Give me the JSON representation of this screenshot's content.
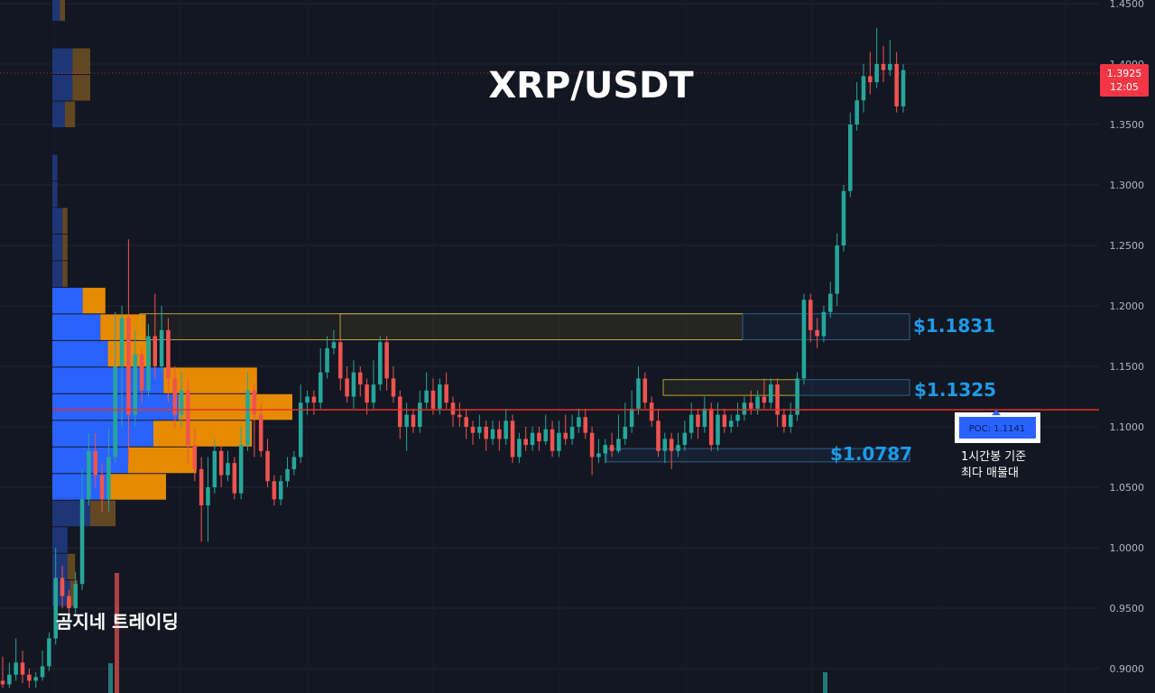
{
  "chart_data": {
    "type": "candlestick",
    "title": "XRP/USDT",
    "ylim": [
      0.885,
      1.455
    ],
    "y_ticks": [
      "1.4500",
      "1.4000",
      "1.3500",
      "1.3000",
      "1.2500",
      "1.2000",
      "1.1500",
      "1.1000",
      "1.0500",
      "1.0000",
      "0.9500",
      "0.9000"
    ],
    "current_price": {
      "value": "1.3925",
      "countdown": "12:05",
      "price": 1.3925,
      "color": "#f23645"
    },
    "poc": {
      "label": "POC: 1.1141",
      "price": 1.1141,
      "note_line1": "1시간봉 기준",
      "note_line2": "최다 매물대"
    },
    "levels": [
      {
        "label": "$1.1831",
        "low": 1.172,
        "high": 1.1935
      },
      {
        "label": "$1.1325",
        "low": 1.126,
        "high": 1.139
      },
      {
        "label": "$1.0787",
        "low": 1.071,
        "high": 1.082
      }
    ],
    "volume_profile": {
      "bin_size": 0.022,
      "bins": [
        {
          "low": 1.435,
          "up": 0.3,
          "down": 0.2
        },
        {
          "low": 1.391,
          "up": 0.8,
          "down": 0.7
        },
        {
          "low": 1.369,
          "up": 0.8,
          "down": 0.7
        },
        {
          "low": 1.347,
          "up": 0.5,
          "down": 0.4
        },
        {
          "low": 1.303,
          "up": 0.2,
          "down": 0.0
        },
        {
          "low": 1.281,
          "up": 0.2,
          "down": 0.0
        },
        {
          "low": 1.259,
          "up": 0.4,
          "down": 0.2
        },
        {
          "low": 1.237,
          "up": 0.4,
          "down": 0.2
        },
        {
          "low": 1.215,
          "up": 0.4,
          "down": 0.2
        },
        {
          "low": 1.193,
          "up": 1.2,
          "down": 0.9
        },
        {
          "low": 1.171,
          "up": 1.9,
          "down": 1.8
        },
        {
          "low": 1.149,
          "up": 2.2,
          "down": 1.7
        },
        {
          "low": 1.127,
          "up": 4.4,
          "down": 3.7
        },
        {
          "low": 1.105,
          "up": 5.0,
          "down": 4.5
        },
        {
          "low": 1.083,
          "up": 4.0,
          "down": 3.9
        },
        {
          "low": 1.061,
          "up": 3.0,
          "down": 2.7
        },
        {
          "low": 1.039,
          "up": 2.2,
          "down": 2.3
        },
        {
          "low": 1.017,
          "up": 1.5,
          "down": 1.0
        },
        {
          "low": 0.995,
          "up": 0.6,
          "down": 0.0
        },
        {
          "low": 0.973,
          "up": 0.6,
          "down": 0.3
        },
        {
          "low": 0.951,
          "up": 0.7,
          "down": 0.3
        }
      ]
    },
    "candles": [
      [
        0.89,
        0.887,
        0.91,
        0.884
      ],
      [
        0.887,
        0.895,
        0.905,
        0.884
      ],
      [
        0.895,
        0.905,
        0.925,
        0.89
      ],
      [
        0.905,
        0.895,
        0.915,
        0.888
      ],
      [
        0.895,
        0.89,
        0.9,
        0.884
      ],
      [
        0.89,
        0.893,
        0.897,
        0.884
      ],
      [
        0.893,
        0.902,
        0.915,
        0.89
      ],
      [
        0.902,
        0.925,
        0.93,
        0.898
      ],
      [
        0.925,
        0.975,
        1.0,
        0.92
      ],
      [
        0.975,
        0.96,
        0.985,
        0.95
      ],
      [
        0.96,
        0.95,
        0.965,
        0.94
      ],
      [
        0.95,
        0.97,
        0.98,
        0.945
      ],
      [
        0.97,
        1.04,
        1.065,
        0.965
      ],
      [
        1.04,
        1.08,
        1.095,
        1.035
      ],
      [
        1.08,
        1.06,
        1.095,
        1.05
      ],
      [
        1.06,
        1.04,
        1.07,
        1.03
      ],
      [
        1.04,
        1.075,
        1.1,
        1.03
      ],
      [
        1.075,
        1.15,
        1.195,
        1.07
      ],
      [
        1.15,
        1.19,
        1.2,
        1.1
      ],
      [
        1.19,
        1.11,
        1.255,
        1.07
      ],
      [
        1.11,
        1.16,
        1.18,
        1.1
      ],
      [
        1.16,
        1.13,
        1.165,
        1.12
      ],
      [
        1.13,
        1.175,
        1.185,
        1.125
      ],
      [
        1.175,
        1.15,
        1.21,
        1.14
      ],
      [
        1.15,
        1.18,
        1.2,
        1.145
      ],
      [
        1.18,
        1.14,
        1.19,
        1.12
      ],
      [
        1.14,
        1.11,
        1.15,
        1.1
      ],
      [
        1.11,
        1.13,
        1.145,
        1.1
      ],
      [
        1.13,
        1.085,
        1.14,
        1.07
      ],
      [
        1.085,
        1.065,
        1.1,
        1.055
      ],
      [
        1.065,
        1.035,
        1.075,
        1.005
      ],
      [
        1.035,
        1.05,
        1.075,
        1.005
      ],
      [
        1.05,
        1.08,
        1.09,
        1.045
      ],
      [
        1.08,
        1.06,
        1.085,
        1.05
      ],
      [
        1.06,
        1.07,
        1.08,
        1.055
      ],
      [
        1.07,
        1.045,
        1.075,
        1.04
      ],
      [
        1.045,
        1.085,
        1.1,
        1.04
      ],
      [
        1.085,
        1.13,
        1.145,
        1.08
      ],
      [
        1.13,
        1.11,
        1.135,
        1.075
      ],
      [
        1.11,
        1.08,
        1.12,
        1.075
      ],
      [
        1.08,
        1.055,
        1.09,
        1.05
      ],
      [
        1.055,
        1.04,
        1.06,
        1.035
      ],
      [
        1.04,
        1.055,
        1.06,
        1.035
      ],
      [
        1.055,
        1.065,
        1.075,
        1.05
      ],
      [
        1.065,
        1.075,
        1.08,
        1.06
      ],
      [
        1.075,
        1.12,
        1.135,
        1.07
      ],
      [
        1.12,
        1.125,
        1.13,
        1.11
      ],
      [
        1.125,
        1.12,
        1.13,
        1.11
      ],
      [
        1.12,
        1.145,
        1.165,
        1.115
      ],
      [
        1.145,
        1.165,
        1.175,
        1.14
      ],
      [
        1.165,
        1.17,
        1.18,
        1.16
      ],
      [
        1.17,
        1.14,
        1.175,
        1.13
      ],
      [
        1.14,
        1.125,
        1.15,
        1.12
      ],
      [
        1.125,
        1.145,
        1.155,
        1.115
      ],
      [
        1.145,
        1.135,
        1.15,
        1.125
      ],
      [
        1.135,
        1.12,
        1.14,
        1.11
      ],
      [
        1.12,
        1.135,
        1.155,
        1.115
      ],
      [
        1.135,
        1.17,
        1.175,
        1.13
      ],
      [
        1.17,
        1.14,
        1.175,
        1.13
      ],
      [
        1.14,
        1.125,
        1.15,
        1.12
      ],
      [
        1.125,
        1.1,
        1.13,
        1.09
      ],
      [
        1.1,
        1.11,
        1.12,
        1.08
      ],
      [
        1.11,
        1.1,
        1.115,
        1.095
      ],
      [
        1.1,
        1.12,
        1.13,
        1.095
      ],
      [
        1.12,
        1.13,
        1.145,
        1.115
      ],
      [
        1.13,
        1.115,
        1.14,
        1.11
      ],
      [
        1.115,
        1.135,
        1.14,
        1.11
      ],
      [
        1.135,
        1.12,
        1.145,
        1.115
      ],
      [
        1.12,
        1.11,
        1.125,
        1.1
      ],
      [
        1.11,
        1.108,
        1.12,
        1.1
      ],
      [
        1.108,
        1.1,
        1.115,
        1.09
      ],
      [
        1.1,
        1.095,
        1.105,
        1.085
      ],
      [
        1.095,
        1.1,
        1.11,
        1.09
      ],
      [
        1.1,
        1.09,
        1.105,
        1.08
      ],
      [
        1.09,
        1.098,
        1.105,
        1.085
      ],
      [
        1.098,
        1.09,
        1.105,
        1.08
      ],
      [
        1.09,
        1.105,
        1.115,
        1.085
      ],
      [
        1.105,
        1.075,
        1.11,
        1.07
      ],
      [
        1.075,
        1.09,
        1.095,
        1.07
      ],
      [
        1.09,
        1.085,
        1.1,
        1.08
      ],
      [
        1.085,
        1.095,
        1.1,
        1.08
      ],
      [
        1.095,
        1.088,
        1.1,
        1.08
      ],
      [
        1.088,
        1.098,
        1.11,
        1.085
      ],
      [
        1.098,
        1.08,
        1.105,
        1.075
      ],
      [
        1.08,
        1.095,
        1.105,
        1.075
      ],
      [
        1.095,
        1.09,
        1.11,
        1.085
      ],
      [
        1.09,
        1.1,
        1.11,
        1.085
      ],
      [
        1.1,
        1.108,
        1.115,
        1.095
      ],
      [
        1.108,
        1.095,
        1.115,
        1.09
      ],
      [
        1.095,
        1.075,
        1.1,
        1.06
      ],
      [
        1.075,
        1.078,
        1.09,
        1.07
      ],
      [
        1.078,
        1.085,
        1.09,
        1.07
      ],
      [
        1.085,
        1.08,
        1.095,
        1.075
      ],
      [
        1.08,
        1.09,
        1.11,
        1.078
      ],
      [
        1.09,
        1.1,
        1.12,
        1.085
      ],
      [
        1.1,
        1.115,
        1.13,
        1.095
      ],
      [
        1.115,
        1.14,
        1.15,
        1.11
      ],
      [
        1.14,
        1.12,
        1.145,
        1.115
      ],
      [
        1.12,
        1.105,
        1.125,
        1.1
      ],
      [
        1.105,
        1.08,
        1.115,
        1.075
      ],
      [
        1.08,
        1.09,
        1.095,
        1.07
      ],
      [
        1.09,
        1.08,
        1.095,
        1.065
      ],
      [
        1.08,
        1.085,
        1.095,
        1.075
      ],
      [
        1.085,
        1.095,
        1.105,
        1.08
      ],
      [
        1.095,
        1.11,
        1.12,
        1.09
      ],
      [
        1.11,
        1.1,
        1.115,
        1.09
      ],
      [
        1.1,
        1.115,
        1.125,
        1.095
      ],
      [
        1.115,
        1.085,
        1.12,
        1.08
      ],
      [
        1.085,
        1.11,
        1.12,
        1.08
      ],
      [
        1.11,
        1.1,
        1.115,
        1.095
      ],
      [
        1.1,
        1.105,
        1.11,
        1.095
      ],
      [
        1.105,
        1.11,
        1.12,
        1.1
      ],
      [
        1.11,
        1.12,
        1.125,
        1.105
      ],
      [
        1.12,
        1.115,
        1.13,
        1.11
      ],
      [
        1.115,
        1.125,
        1.13,
        1.11
      ],
      [
        1.125,
        1.12,
        1.14,
        1.115
      ],
      [
        1.12,
        1.135,
        1.14,
        1.115
      ],
      [
        1.135,
        1.11,
        1.14,
        1.1
      ],
      [
        1.11,
        1.1,
        1.115,
        1.095
      ],
      [
        1.1,
        1.11,
        1.12,
        1.095
      ],
      [
        1.11,
        1.14,
        1.145,
        1.105
      ],
      [
        1.14,
        1.205,
        1.21,
        1.135
      ],
      [
        1.205,
        1.18,
        1.21,
        1.17
      ],
      [
        1.18,
        1.175,
        1.19,
        1.165
      ],
      [
        1.175,
        1.195,
        1.2,
        1.17
      ],
      [
        1.195,
        1.21,
        1.22,
        1.19
      ],
      [
        1.21,
        1.25,
        1.26,
        1.2
      ],
      [
        1.25,
        1.295,
        1.3,
        1.245
      ],
      [
        1.295,
        1.35,
        1.36,
        1.29
      ],
      [
        1.35,
        1.37,
        1.385,
        1.345
      ],
      [
        1.37,
        1.39,
        1.4,
        1.36
      ],
      [
        1.39,
        1.385,
        1.41,
        1.375
      ],
      [
        1.385,
        1.4,
        1.43,
        1.38
      ],
      [
        1.4,
        1.395,
        1.415,
        1.385
      ],
      [
        1.395,
        1.4,
        1.42,
        1.39
      ],
      [
        1.4,
        1.365,
        1.41,
        1.36
      ],
      [
        1.365,
        1.395,
        1.4,
        1.36
      ]
    ],
    "volume_bars": [
      {
        "x": 120,
        "top": 735,
        "color": "#26a69a"
      },
      {
        "x": 127,
        "top": 635,
        "color": "#ef5350"
      },
      {
        "x": 912,
        "top": 745,
        "color": "#26a69a"
      }
    ]
  },
  "watermark": "곰지네 트레이딩",
  "colors": {
    "background": "#131722",
    "up": "#26a69a",
    "down": "#ef5350",
    "poc_line": "#e5332a",
    "level": "#1e9be8",
    "vp_up": "#2962ff",
    "vp_down": "#e68a00"
  }
}
